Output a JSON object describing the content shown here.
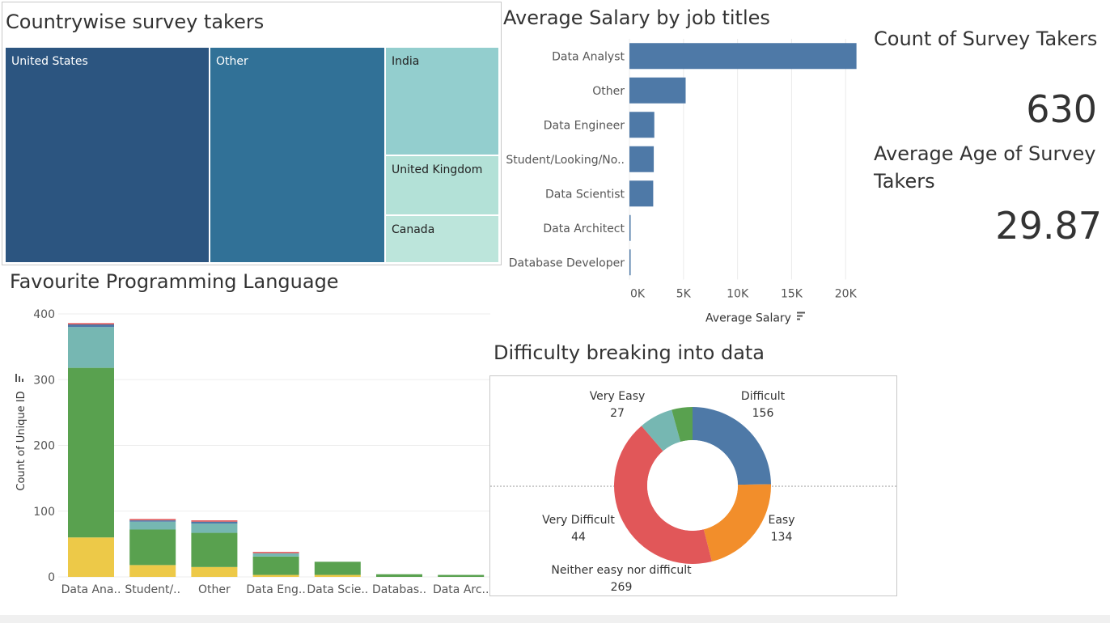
{
  "treemap": {
    "title": "Countrywise survey takers",
    "tiles": [
      {
        "label": "United States",
        "color": "#2c5580",
        "text_color": "#ffffff"
      },
      {
        "label": "Other",
        "color": "#317197",
        "text_color": "#ffffff"
      },
      {
        "label": "India",
        "color": "#93cece",
        "text_color": "#222222"
      },
      {
        "label": "United Kingdom",
        "color": "#b3e1d7",
        "text_color": "#222222"
      },
      {
        "label": "Canada",
        "color": "#bce5db",
        "text_color": "#222222"
      }
    ]
  },
  "kpis": {
    "count_title": "Count of Survey Takers",
    "count_value": "630",
    "age_title_line1": "Average Age of Survey",
    "age_title_line2": "Takers",
    "age_value": "29.87"
  },
  "chart_data": [
    {
      "id": "salary",
      "type": "bar",
      "orientation": "horizontal",
      "title": "Average Salary by job titles",
      "xlabel": "Average Salary",
      "categories": [
        "Data Analyst",
        "Other",
        "Data Engineer",
        "Student/Looking/No..",
        "Data Scientist",
        "Data Architect",
        "Database Developer"
      ],
      "values": [
        21000,
        5200,
        2300,
        2250,
        2200,
        100,
        50
      ],
      "xlim": [
        0,
        22000
      ],
      "ticks": [
        0,
        5000,
        10000,
        15000,
        20000
      ],
      "tick_labels": [
        "0K",
        "5K",
        "10K",
        "15K",
        "20K"
      ],
      "color": "#4e79a7"
    },
    {
      "id": "language",
      "type": "bar",
      "stacked": true,
      "title": "Favourite Programming Language",
      "ylabel": "Count of Unique ID",
      "categories": [
        "Data Ana..",
        "Student/..",
        "Other",
        "Data Eng..",
        "Data Scie..",
        "Databas..",
        "Data Arc.."
      ],
      "ylim": [
        0,
        400
      ],
      "y_ticks": [
        0,
        100,
        200,
        300,
        400
      ],
      "series": [
        {
          "color": "#edc948",
          "values": [
            60,
            18,
            15,
            3,
            3,
            0,
            0
          ]
        },
        {
          "color": "#59a14f",
          "values": [
            258,
            54,
            52,
            28,
            20,
            4,
            3
          ]
        },
        {
          "color": "#76b7b2",
          "values": [
            62,
            12,
            14,
            5,
            0,
            0,
            0
          ]
        },
        {
          "color": "#4e79a7",
          "values": [
            4,
            2,
            3,
            0,
            0,
            0,
            0
          ]
        },
        {
          "color": "#e15759",
          "values": [
            2,
            2,
            2,
            2,
            0,
            0,
            0
          ]
        }
      ]
    },
    {
      "id": "difficulty",
      "type": "pie",
      "donut": true,
      "title": "Difficulty breaking into data",
      "slices": [
        {
          "label": "Difficult",
          "value": 156,
          "color": "#4e79a7"
        },
        {
          "label": "Easy",
          "value": 134,
          "color": "#f28e2b"
        },
        {
          "label": "Neither easy nor difficult",
          "value": 269,
          "color": "#e15759"
        },
        {
          "label": "Very Difficult",
          "value": 44,
          "color": "#76b7b2"
        },
        {
          "label": "Very Easy",
          "value": 27,
          "color": "#59a14f"
        }
      ]
    }
  ]
}
